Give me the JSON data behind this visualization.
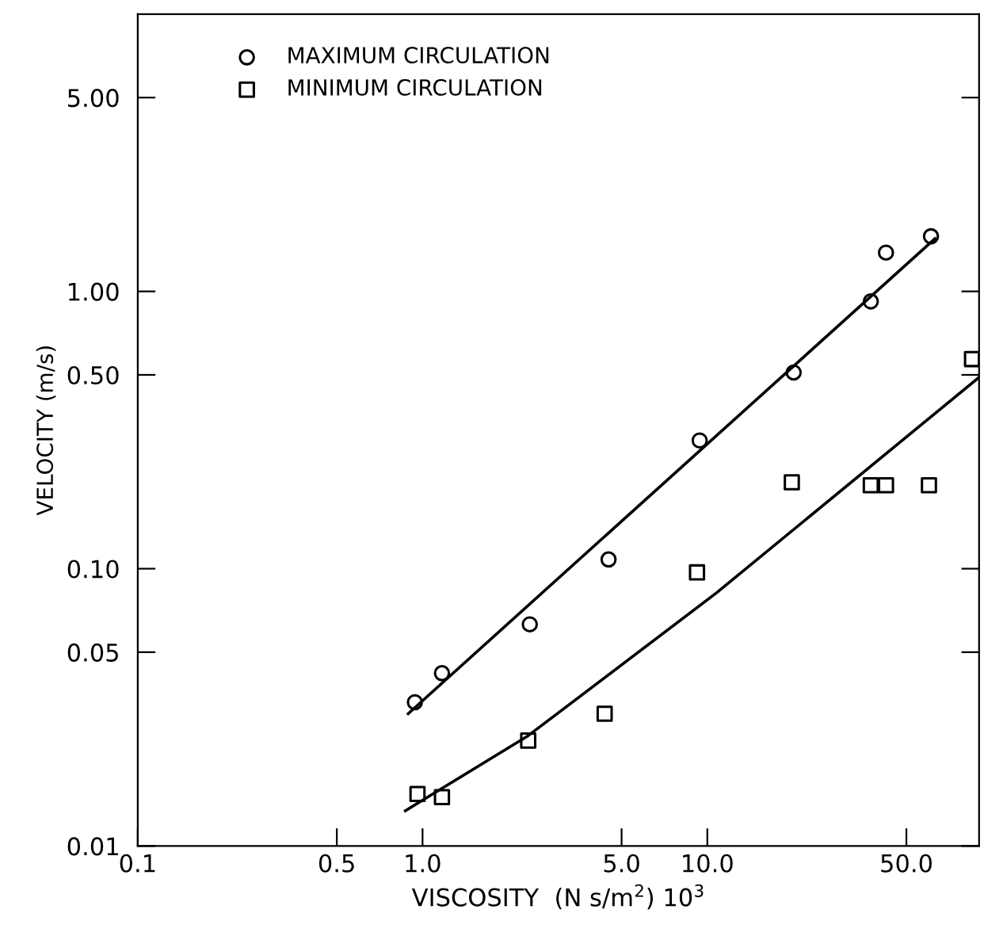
{
  "chart_data": {
    "type": "scatter",
    "xlabel": "VISCOSITY  (N s/m$^{2}$) 10$^{3}$",
    "ylabel": "VELOCITY (m/s)",
    "log": "xy",
    "xlim": [
      0.1,
      90
    ],
    "ylim": [
      0.01,
      10
    ],
    "xticks": [
      {
        "value": 0.1,
        "label": "0.1"
      },
      {
        "value": 0.5,
        "label": "0.5"
      },
      {
        "value": 1,
        "label": "1.0"
      },
      {
        "value": 5,
        "label": "5.0"
      },
      {
        "value": 10,
        "label": "10.0"
      },
      {
        "value": 50,
        "label": "50.0"
      }
    ],
    "yticks": [
      {
        "value": 0.01,
        "label": "0.01"
      },
      {
        "value": 0.05,
        "label": "0.05"
      },
      {
        "value": 0.1,
        "label": "0.10"
      },
      {
        "value": 0.5,
        "label": "0.50"
      },
      {
        "value": 1,
        "label": "1.00"
      },
      {
        "value": 5,
        "label": "5.00"
      }
    ],
    "grid": false,
    "legend": "top left",
    "series": [
      {
        "name": "MAXIMUM CIRCULATION",
        "marker": "circle",
        "color": "#000000",
        "x": [
          0.94,
          1.17,
          2.38,
          4.5,
          9.4,
          20.1,
          37.5,
          42.4,
          61
        ],
        "values": [
          0.033,
          0.042,
          0.063,
          0.108,
          0.29,
          0.51,
          0.92,
          1.38,
          1.58
        ]
      },
      {
        "name": "MINIMUM CIRCULATION",
        "marker": "square",
        "color": "#000000",
        "x": [
          0.96,
          1.17,
          2.35,
          4.36,
          9.2,
          19.8,
          37.5,
          42.4,
          60,
          85
        ],
        "values": [
          0.0154,
          0.015,
          0.024,
          0.03,
          0.097,
          0.205,
          0.2,
          0.2,
          0.2,
          0.57
        ]
      },
      {
        "type": "line",
        "marker": "none",
        "line_style": "solid",
        "color": "#000000",
        "x": [
          0.89,
          63
        ],
        "values": [
          0.03,
          1.55
        ]
      },
      {
        "type": "line",
        "marker": "none",
        "line_style": "solid",
        "color": "#000000",
        "x": [
          0.87,
          2.35,
          10.8,
          90
        ],
        "values": [
          0.0134,
          0.025,
          0.082,
          0.49
        ]
      }
    ]
  }
}
